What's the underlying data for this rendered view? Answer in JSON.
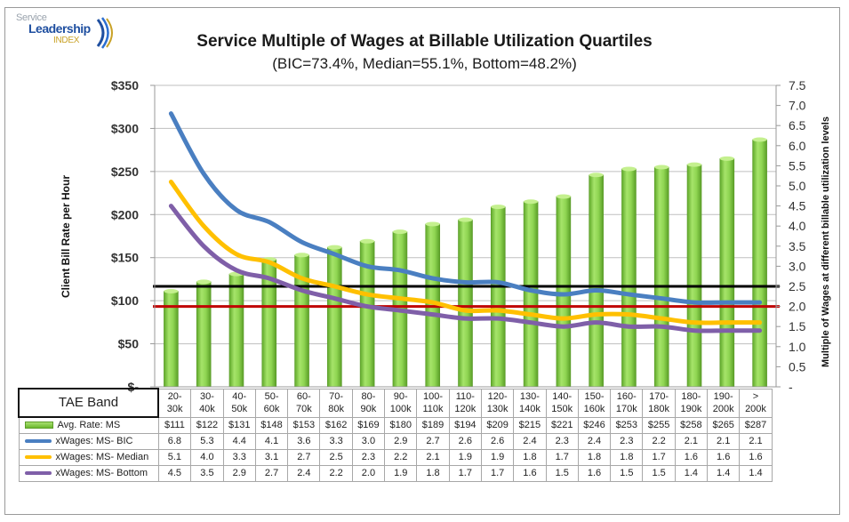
{
  "logo": {
    "line1": "Service",
    "line2": "Leadership",
    "line3": "INDEX"
  },
  "colors": {
    "bars": "#7cc63d",
    "bic": "#4a7fc1",
    "median": "#ffc000",
    "bottom": "#7f5fa8",
    "ref_high": "#000000",
    "ref_low": "#c00000",
    "grid": "#bfbfbf"
  },
  "chart_data": {
    "type": "bar",
    "title": "Service Multiple of Wages at Billable Utilization Quartiles",
    "subtitle": "(BIC=73.4%, Median=55.1%, Bottom=48.2%)",
    "ylabel": "Client Bill Rate per Hour",
    "y2label": "Multiple of Wages at different billable utilization levels",
    "ylim": [
      0,
      350
    ],
    "y2lim": [
      0,
      7.5
    ],
    "yticks": [
      "$-",
      "$50",
      "$100",
      "$150",
      "$200",
      "$250",
      "$300",
      "$350"
    ],
    "y2ticks": [
      "-",
      "0.5",
      "1.0",
      "1.5",
      "2.0",
      "2.5",
      "3.0",
      "3.5",
      "4.0",
      "4.5",
      "5.0",
      "5.5",
      "6.0",
      "6.5",
      "7.0",
      "7.5"
    ],
    "grid": true,
    "table_header": "TAE Band",
    "categories": [
      [
        "20-",
        "30k"
      ],
      [
        "30-",
        "40k"
      ],
      [
        "40-",
        "50k"
      ],
      [
        "50-",
        "60k"
      ],
      [
        "60-",
        "70k"
      ],
      [
        "70-",
        "80k"
      ],
      [
        "80-",
        "90k"
      ],
      [
        "90-",
        "100k"
      ],
      [
        "100-",
        "110k"
      ],
      [
        "110-",
        "120k"
      ],
      [
        "120-",
        "130k"
      ],
      [
        "130-",
        "140k"
      ],
      [
        "140-",
        "150k"
      ],
      [
        "150-",
        "160k"
      ],
      [
        "160-",
        "170k"
      ],
      [
        "170-",
        "180k"
      ],
      [
        "180-",
        "190k"
      ],
      [
        "190-",
        "200k"
      ],
      [
        ">",
        "200k"
      ]
    ],
    "series": [
      {
        "name": "Avg. Rate: MS",
        "type": "bar",
        "axis": "left",
        "values": [
          111,
          122,
          131,
          148,
          153,
          162,
          169,
          180,
          189,
          194,
          209,
          215,
          221,
          246,
          253,
          255,
          258,
          265,
          287
        ],
        "labels": [
          "$111",
          "$122",
          "$131",
          "$148",
          "$153",
          "$162",
          "$169",
          "$180",
          "$189",
          "$194",
          "$209",
          "$215",
          "$221",
          "$246",
          "$253",
          "$255",
          "$258",
          "$265",
          "$287"
        ]
      },
      {
        "name": "xWages: MS- BIC",
        "type": "line",
        "axis": "right",
        "values": [
          6.8,
          5.3,
          4.4,
          4.1,
          3.6,
          3.3,
          3.0,
          2.9,
          2.7,
          2.6,
          2.6,
          2.4,
          2.3,
          2.4,
          2.3,
          2.2,
          2.1,
          2.1,
          2.1
        ]
      },
      {
        "name": "xWages: MS- Median",
        "type": "line",
        "axis": "right",
        "values": [
          5.1,
          4.0,
          3.3,
          3.1,
          2.7,
          2.5,
          2.3,
          2.2,
          2.1,
          1.9,
          1.9,
          1.8,
          1.7,
          1.8,
          1.8,
          1.7,
          1.6,
          1.6,
          1.6
        ]
      },
      {
        "name": "xWages: MS- Bottom",
        "type": "line",
        "axis": "right",
        "values": [
          4.5,
          3.5,
          2.9,
          2.7,
          2.4,
          2.2,
          2.0,
          1.9,
          1.8,
          1.7,
          1.7,
          1.6,
          1.5,
          1.6,
          1.5,
          1.5,
          1.4,
          1.4,
          1.4
        ]
      }
    ],
    "reference_lines": [
      {
        "axis": "right",
        "value": 2.5,
        "color": "#000000"
      },
      {
        "axis": "right",
        "value": 2.0,
        "color": "#c00000"
      }
    ],
    "legend": "data-table-bottom"
  }
}
